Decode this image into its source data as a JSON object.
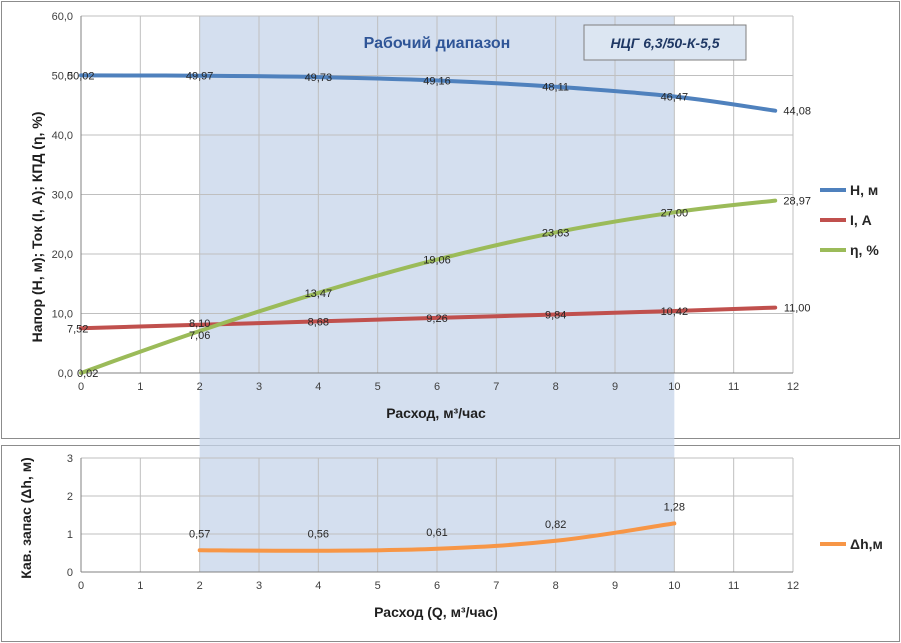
{
  "colors": {
    "H": "#4f81bd",
    "I": "#c0504d",
    "eta": "#9bbb59",
    "dh": "#f79646",
    "band": "#c6d4ea",
    "grid": "#bfbfbf",
    "titleBlue": "#2f5597"
  },
  "working_range_label": "Рабочий диапазон",
  "model_label": "НЦГ 6,3/50-К-5,5",
  "chart_data": [
    {
      "type": "line",
      "xlabel": "Расход, м³/час",
      "ylabel": "Напор (H, м); Ток (I, А); КПД (η, %)",
      "xlim": [
        0,
        12
      ],
      "ylim": [
        0,
        60
      ],
      "x_ticks": [
        "0",
        "1",
        "2",
        "3",
        "4",
        "5",
        "6",
        "7",
        "8",
        "9",
        "10",
        "11",
        "12"
      ],
      "y_ticks": [
        "0,0",
        "10,0",
        "20,0",
        "30,0",
        "40,0",
        "50,0",
        "60,0"
      ],
      "working_range": [
        2,
        10
      ],
      "legend_position": "right",
      "series": [
        {
          "name": "H, м",
          "x": [
            0,
            2,
            4,
            6,
            8,
            10,
            11.7
          ],
          "y": [
            50.02,
            49.97,
            49.73,
            49.16,
            48.11,
            46.47,
            44.08
          ],
          "labels": [
            "50,02",
            "49,97",
            "49,73",
            "49,16",
            "48,11",
            "46,47",
            "44,08"
          ]
        },
        {
          "name": "I, А",
          "x": [
            0,
            2,
            4,
            6,
            8,
            10,
            11.7
          ],
          "y": [
            7.52,
            8.1,
            8.68,
            9.26,
            9.84,
            10.42,
            11.0
          ],
          "labels": [
            "7,52",
            "8,10",
            "8,68",
            "9,26",
            "9,84",
            "10,42",
            "11,00"
          ]
        },
        {
          "name": "η, %",
          "x": [
            0,
            2,
            4,
            6,
            8,
            10,
            11.7
          ],
          "y": [
            0.02,
            7.06,
            13.47,
            19.06,
            23.63,
            27.0,
            28.97
          ],
          "labels": [
            "0,02",
            "7,06",
            "13,47",
            "19,06",
            "23,63",
            "27,00",
            "28,97"
          ]
        }
      ]
    },
    {
      "type": "line",
      "xlabel": "Расход (Q, м³/час)",
      "ylabel": "Кав. запас (Δh, м)",
      "xlim": [
        0,
        12
      ],
      "ylim": [
        0,
        3
      ],
      "x_ticks": [
        "0",
        "1",
        "2",
        "3",
        "4",
        "5",
        "6",
        "7",
        "8",
        "9",
        "10",
        "11",
        "12"
      ],
      "y_ticks": [
        "0",
        "1",
        "2",
        "3"
      ],
      "legend_position": "right",
      "series": [
        {
          "name": "Δh,м",
          "x": [
            2,
            4,
            6,
            8,
            10
          ],
          "y": [
            0.57,
            0.56,
            0.61,
            0.82,
            1.28
          ],
          "labels": [
            "0,57",
            "0,56",
            "0,61",
            "0,82",
            "1,28"
          ]
        }
      ]
    }
  ]
}
